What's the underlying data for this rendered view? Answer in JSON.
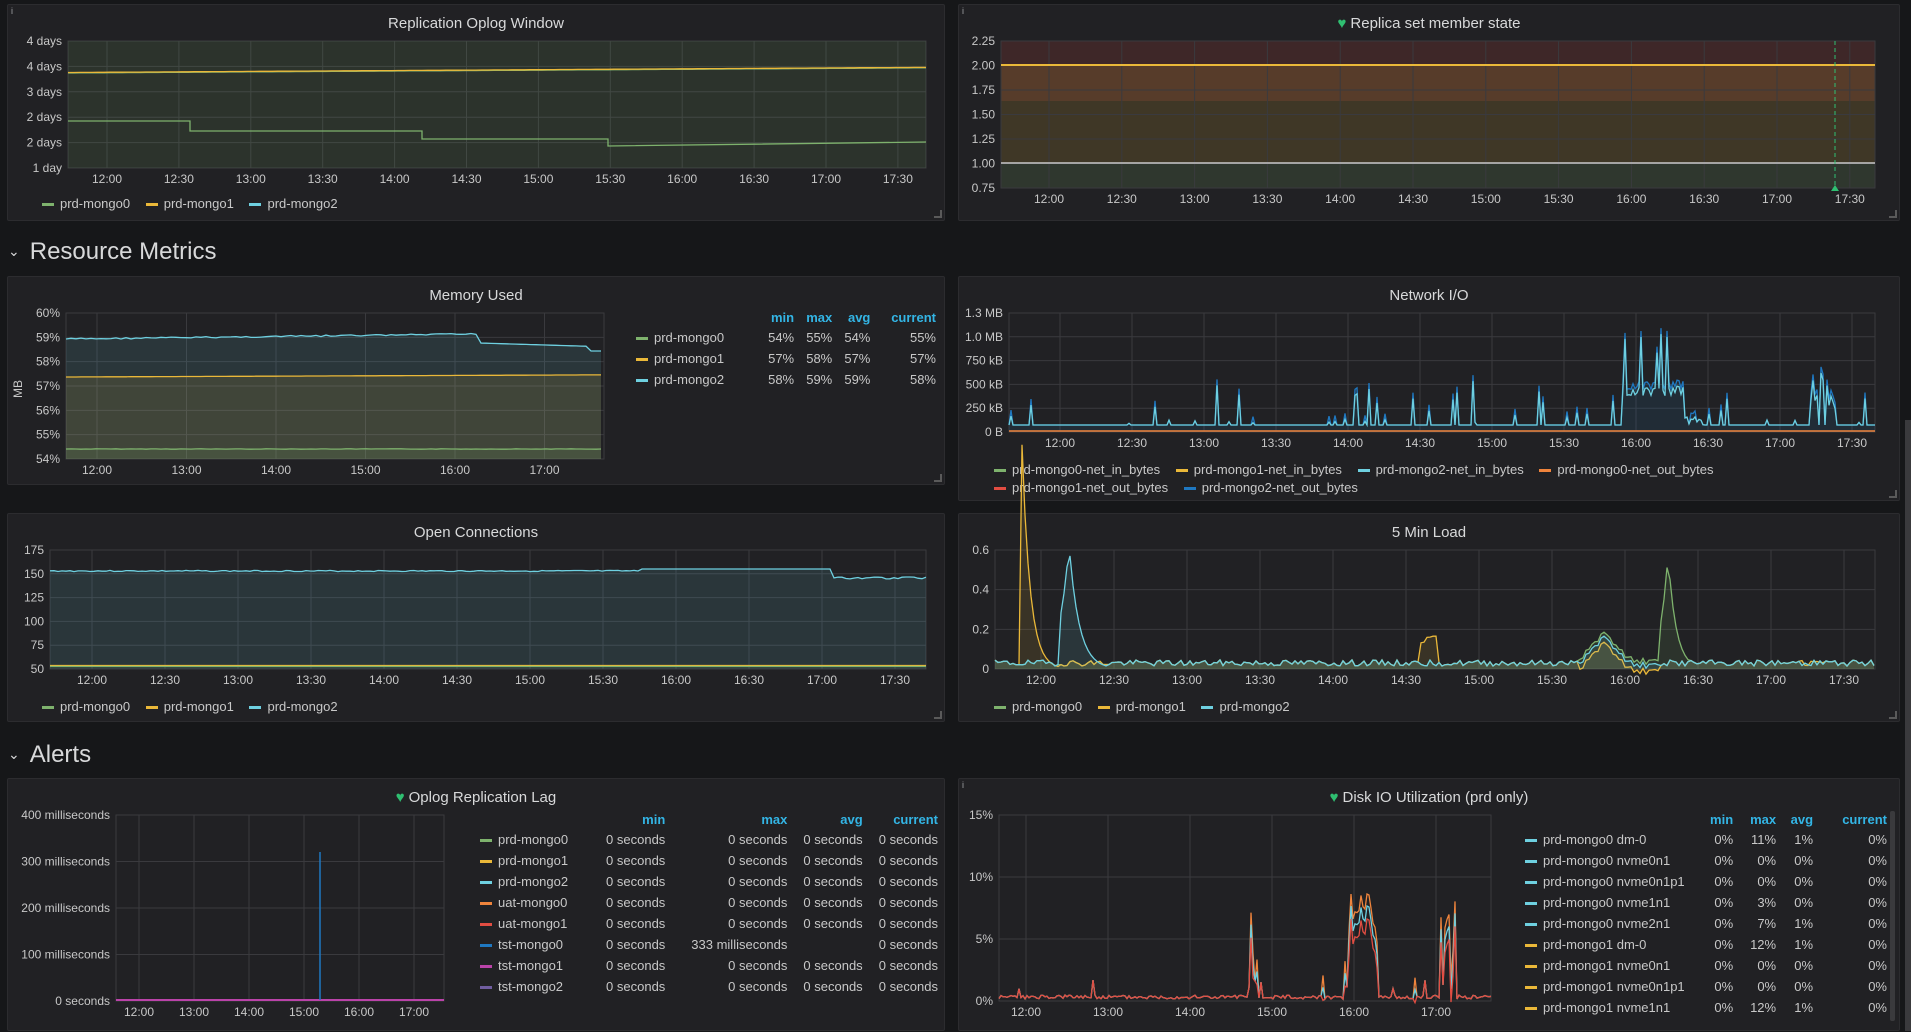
{
  "colors": {
    "green": "#7eb26d",
    "yellow": "#eab839",
    "cyan": "#6ed0e0",
    "orange": "#ef843c",
    "red": "#e24d42",
    "blue": "#1f78c1",
    "pink": "#ba43a9",
    "purple": "#705da0",
    "accent": "#33b5e5"
  },
  "rows": {
    "resource": "Resource Metrics",
    "alerts": "Alerts"
  },
  "info_icon": "i",
  "oplog_window": {
    "title": "Replication Oplog Window",
    "yticks": [
      "4 days",
      "4 days",
      "3 days",
      "2 days",
      "2 days",
      "1 day"
    ],
    "xticks": [
      "12:00",
      "12:30",
      "13:00",
      "13:30",
      "14:00",
      "14:30",
      "15:00",
      "15:30",
      "16:00",
      "16:30",
      "17:00",
      "17:30"
    ],
    "legend": [
      "prd-mongo0",
      "prd-mongo1",
      "prd-mongo2"
    ]
  },
  "replica_state": {
    "title": "Replica set member state",
    "yticks": [
      "2.25",
      "2.00",
      "1.75",
      "1.50",
      "1.25",
      "1.00",
      "0.75"
    ],
    "xticks": [
      "12:00",
      "12:30",
      "13:00",
      "13:30",
      "14:00",
      "14:30",
      "15:00",
      "15:30",
      "16:00",
      "16:30",
      "17:00",
      "17:30"
    ]
  },
  "memory": {
    "title": "Memory Used",
    "ylabel": "MB",
    "yticks": [
      "60%",
      "59%",
      "58%",
      "57%",
      "56%",
      "55%",
      "54%"
    ],
    "xticks": [
      "12:00",
      "13:00",
      "14:00",
      "15:00",
      "16:00",
      "17:00"
    ],
    "headers": [
      "min",
      "max",
      "avg",
      "current"
    ],
    "rows": [
      {
        "name": "prd-mongo0",
        "min": "54%",
        "max": "55%",
        "avg": "54%",
        "current": "55%"
      },
      {
        "name": "prd-mongo1",
        "min": "57%",
        "max": "58%",
        "avg": "57%",
        "current": "57%"
      },
      {
        "name": "prd-mongo2",
        "min": "58%",
        "max": "59%",
        "avg": "59%",
        "current": "58%"
      }
    ]
  },
  "network": {
    "title": "Network I/O",
    "yticks": [
      "1.3 MB",
      "1.0 MB",
      "750 kB",
      "500 kB",
      "250 kB",
      "0 B"
    ],
    "xticks": [
      "12:00",
      "12:30",
      "13:00",
      "13:30",
      "14:00",
      "14:30",
      "15:00",
      "15:30",
      "16:00",
      "16:30",
      "17:00",
      "17:30"
    ],
    "legend": [
      "prd-mongo0-net_in_bytes",
      "prd-mongo1-net_in_bytes",
      "prd-mongo2-net_in_bytes",
      "prd-mongo0-net_out_bytes",
      "prd-mongo1-net_out_bytes",
      "prd-mongo2-net_out_bytes"
    ]
  },
  "connections": {
    "title": "Open Connections",
    "yticks": [
      "175",
      "150",
      "125",
      "100",
      "75",
      "50"
    ],
    "xticks": [
      "12:00",
      "12:30",
      "13:00",
      "13:30",
      "14:00",
      "14:30",
      "15:00",
      "15:30",
      "16:00",
      "16:30",
      "17:00",
      "17:30"
    ],
    "legend": [
      "prd-mongo0",
      "prd-mongo1",
      "prd-mongo2"
    ]
  },
  "load": {
    "title": "5 Min Load",
    "yticks": [
      "0.6",
      "0.4",
      "0.2",
      "0"
    ],
    "xticks": [
      "12:00",
      "12:30",
      "13:00",
      "13:30",
      "14:00",
      "14:30",
      "15:00",
      "15:30",
      "16:00",
      "16:30",
      "17:00",
      "17:30"
    ],
    "legend": [
      "prd-mongo0",
      "prd-mongo1",
      "prd-mongo2"
    ]
  },
  "oplog_lag": {
    "title": "Oplog Replication Lag",
    "yticks": [
      "400 milliseconds",
      "300 milliseconds",
      "200 milliseconds",
      "100 milliseconds",
      "0 seconds"
    ],
    "xticks": [
      "12:00",
      "13:00",
      "14:00",
      "15:00",
      "16:00",
      "17:00"
    ],
    "headers": [
      "min",
      "max",
      "avg",
      "current"
    ],
    "rows": [
      {
        "name": "prd-mongo0",
        "min": "0 seconds",
        "max": "0 seconds",
        "avg": "0 seconds",
        "current": "0 seconds"
      },
      {
        "name": "prd-mongo1",
        "min": "0 seconds",
        "max": "0 seconds",
        "avg": "0 seconds",
        "current": "0 seconds"
      },
      {
        "name": "prd-mongo2",
        "min": "0 seconds",
        "max": "0 seconds",
        "avg": "0 seconds",
        "current": "0 seconds"
      },
      {
        "name": "uat-mongo0",
        "min": "0 seconds",
        "max": "0 seconds",
        "avg": "0 seconds",
        "current": "0 seconds"
      },
      {
        "name": "uat-mongo1",
        "min": "0 seconds",
        "max": "0 seconds",
        "avg": "0 seconds",
        "current": "0 seconds"
      },
      {
        "name": "tst-mongo0",
        "min": "0 seconds",
        "max": "333 milliseconds",
        "avg": "",
        "current": "0 seconds"
      },
      {
        "name": "tst-mongo1",
        "min": "0 seconds",
        "max": "0 seconds",
        "avg": "0 seconds",
        "current": "0 seconds"
      },
      {
        "name": "tst-mongo2",
        "min": "0 seconds",
        "max": "0 seconds",
        "avg": "0 seconds",
        "current": "0 seconds"
      }
    ]
  },
  "disk_io": {
    "title": "Disk IO Utilization (prd only)",
    "yticks": [
      "15%",
      "10%",
      "5%",
      "0%"
    ],
    "xticks": [
      "12:00",
      "13:00",
      "14:00",
      "15:00",
      "16:00",
      "17:00"
    ],
    "headers": [
      "min",
      "max",
      "avg",
      "current"
    ],
    "rows": [
      {
        "name": "prd-mongo0 dm-0",
        "min": "0%",
        "max": "11%",
        "avg": "1%",
        "current": "0%"
      },
      {
        "name": "prd-mongo0 nvme0n1",
        "min": "0%",
        "max": "0%",
        "avg": "0%",
        "current": "0%"
      },
      {
        "name": "prd-mongo0 nvme0n1p1",
        "min": "0%",
        "max": "0%",
        "avg": "0%",
        "current": "0%"
      },
      {
        "name": "prd-mongo0 nvme1n1",
        "min": "0%",
        "max": "3%",
        "avg": "0%",
        "current": "0%"
      },
      {
        "name": "prd-mongo0 nvme2n1",
        "min": "0%",
        "max": "7%",
        "avg": "1%",
        "current": "0%"
      },
      {
        "name": "prd-mongo1 dm-0",
        "min": "0%",
        "max": "12%",
        "avg": "1%",
        "current": "0%"
      },
      {
        "name": "prd-mongo1 nvme0n1",
        "min": "0%",
        "max": "0%",
        "avg": "0%",
        "current": "0%"
      },
      {
        "name": "prd-mongo1 nvme0n1p1",
        "min": "0%",
        "max": "0%",
        "avg": "0%",
        "current": "0%"
      },
      {
        "name": "prd-mongo1 nvme1n1",
        "min": "0%",
        "max": "12%",
        "avg": "1%",
        "current": "0%"
      }
    ]
  }
}
